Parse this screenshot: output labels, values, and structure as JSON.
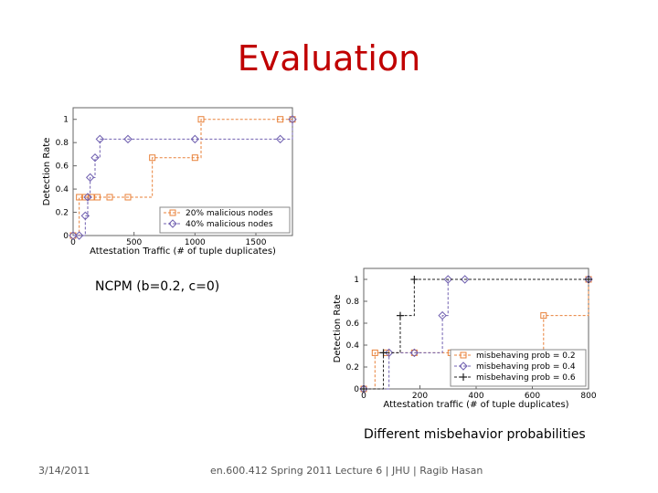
{
  "slide": {
    "title": "Evaluation",
    "caption_left": "NCPM (b=0.2, c=0)",
    "caption_right": "Different misbehavior probabilities",
    "footer_date": "3/14/2011",
    "footer_center": "en.600.412 Spring 2011 Lecture 6 | JHU | Ragib Hasan"
  },
  "chart_data": [
    {
      "type": "line",
      "step": true,
      "xlabel": "Attestation Traffic (# of tuple duplicates)",
      "ylabel": "Detection Rate",
      "xlim": [
        0,
        1800
      ],
      "ylim": [
        0,
        1.1
      ],
      "xticks": [
        0,
        500,
        1000,
        1500
      ],
      "xtick_labels": [
        "0",
        "500",
        "1000",
        "1500"
      ],
      "yticks": [
        0,
        0.2,
        0.4,
        0.6,
        0.8,
        1
      ],
      "ytick_labels": [
        "0",
        "0.2",
        "0.4",
        "0.6",
        "0.8",
        "1"
      ],
      "legend_position": "lower-right",
      "series": [
        {
          "name": "20% malicious nodes",
          "marker": "square",
          "color": "#e8813a",
          "x": [
            0,
            50,
            100,
            150,
            200,
            300,
            450,
            650,
            1000,
            1050,
            1700,
            1800
          ],
          "y": [
            0,
            0.33,
            0.33,
            0.33,
            0.33,
            0.33,
            0.33,
            0.67,
            0.67,
            1,
            1,
            1
          ]
        },
        {
          "name": "40% malicious nodes",
          "marker": "diamond",
          "color": "#7060b0",
          "x": [
            0,
            50,
            100,
            120,
            140,
            180,
            220,
            450,
            1000,
            1700,
            1800
          ],
          "y": [
            0,
            0,
            0.17,
            0.33,
            0.5,
            0.67,
            0.83,
            0.83,
            0.83,
            0.83,
            1
          ]
        }
      ]
    },
    {
      "type": "line",
      "step": true,
      "xlabel": "Attestation traffic (# of tuple duplicates)",
      "ylabel": "Detection Rate",
      "xlim": [
        0,
        800
      ],
      "ylim": [
        0,
        1.1
      ],
      "xticks": [
        0,
        200,
        400,
        600,
        800
      ],
      "xtick_labels": [
        "0",
        "200",
        "400",
        "600",
        "800"
      ],
      "yticks": [
        0,
        0.2,
        0.4,
        0.6,
        0.8,
        1
      ],
      "ytick_labels": [
        "0",
        "0.2",
        "0.4",
        "0.6",
        "0.8",
        "1"
      ],
      "legend_position": "lower-right",
      "series": [
        {
          "name": "misbehaving prob = 0.2",
          "marker": "square",
          "color": "#e8813a",
          "x": [
            0,
            40,
            80,
            180,
            310,
            640,
            800
          ],
          "y": [
            0,
            0.33,
            0.33,
            0.33,
            0.33,
            0.67,
            1
          ]
        },
        {
          "name": "misbehaving prob = 0.4",
          "marker": "diamond",
          "color": "#7060b0",
          "x": [
            0,
            90,
            180,
            280,
            300,
            360,
            800
          ],
          "y": [
            0,
            0.33,
            0.33,
            0.67,
            1,
            1,
            1
          ]
        },
        {
          "name": "misbehaving prob = 0.6",
          "marker": "plus",
          "color": "#222222",
          "x": [
            0,
            70,
            130,
            180,
            800
          ],
          "y": [
            0,
            0.33,
            0.67,
            1,
            1
          ]
        }
      ]
    }
  ]
}
